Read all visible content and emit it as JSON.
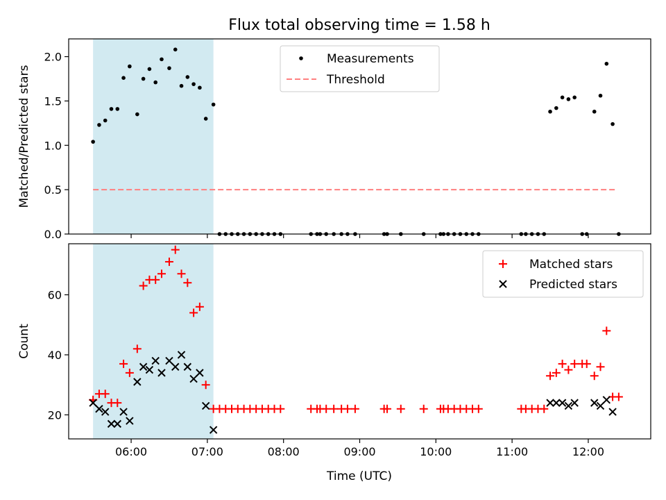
{
  "title": "Flux total observing time = 1.58 h",
  "colors": {
    "shade": "#add8e6",
    "threshold": "#ff7f7f",
    "matched": "#ff0000",
    "predicted": "#000000",
    "measure": "#000000"
  },
  "chart_data": [
    {
      "type": "scatter",
      "title": "Flux total observing time = 1.58 h",
      "xlabel": "",
      "ylabel": "Matched/Predicted stars",
      "x_axis": "time (decimal hours UTC)",
      "xlim": [
        5.18,
        12.82
      ],
      "ylim": [
        0.0,
        2.2
      ],
      "yticks": [
        0.0,
        0.5,
        1.0,
        1.5,
        2.0
      ],
      "yticklabels": [
        "0.0",
        "0.5",
        "1.0",
        "1.5",
        "2.0"
      ],
      "shaded_span": [
        5.5,
        7.08
      ],
      "threshold": {
        "name": "Threshold",
        "value": 0.5,
        "x": [
          5.5,
          12.38
        ]
      },
      "legend": {
        "position": "top-center",
        "entries": [
          "Measurements",
          "Threshold"
        ]
      },
      "series": [
        {
          "name": "Measurements",
          "x": [
            5.5,
            5.58,
            5.66,
            5.74,
            5.82,
            5.9,
            5.98,
            6.08,
            6.16,
            6.24,
            6.32,
            6.4,
            6.5,
            6.58,
            6.66,
            6.74,
            6.82,
            6.9,
            6.98,
            7.08,
            7.16,
            7.24,
            7.32,
            7.4,
            7.48,
            7.56,
            7.64,
            7.72,
            7.8,
            7.88,
            7.96,
            8.36,
            8.44,
            8.48,
            8.56,
            8.66,
            8.76,
            8.84,
            8.94,
            9.32,
            9.36,
            9.54,
            9.84,
            10.06,
            10.1,
            10.16,
            10.24,
            10.32,
            10.4,
            10.48,
            10.56,
            11.12,
            11.18,
            11.26,
            11.34,
            11.42,
            11.5,
            11.58,
            11.66,
            11.74,
            11.82,
            11.92,
            11.98,
            12.08,
            12.16,
            12.24,
            12.32,
            12.4
          ],
          "y": [
            1.04,
            1.23,
            1.28,
            1.41,
            1.41,
            1.76,
            1.89,
            1.35,
            1.75,
            1.86,
            1.71,
            1.97,
            1.87,
            2.08,
            1.67,
            1.77,
            1.69,
            1.65,
            1.3,
            1.46,
            0,
            0,
            0,
            0,
            0,
            0,
            0,
            0,
            0,
            0,
            0,
            0,
            0,
            0,
            0,
            0,
            0,
            0,
            0,
            0,
            0,
            0,
            0,
            0,
            0,
            0,
            0,
            0,
            0,
            0,
            0,
            0,
            0,
            0,
            0,
            0,
            1.38,
            1.42,
            1.54,
            1.52,
            1.54,
            0,
            0,
            1.38,
            1.56,
            1.92,
            1.24,
            0
          ]
        }
      ]
    },
    {
      "type": "scatter",
      "title": "",
      "xlabel": "Time (UTC)",
      "ylabel": "Count",
      "xlim": [
        5.18,
        12.82
      ],
      "ylim": [
        12,
        77
      ],
      "yticks": [
        20,
        40,
        60
      ],
      "yticklabels": [
        "20",
        "40",
        "60"
      ],
      "xticks": [
        6,
        7,
        8,
        9,
        10,
        11,
        12
      ],
      "xticklabels": [
        "06:00",
        "07:00",
        "08:00",
        "09:00",
        "10:00",
        "11:00",
        "12:00"
      ],
      "shaded_span": [
        5.5,
        7.08
      ],
      "legend": {
        "position": "top-right",
        "entries": [
          "Matched stars",
          "Predicted stars"
        ]
      },
      "series": [
        {
          "name": "Matched stars",
          "x": [
            5.5,
            5.58,
            5.66,
            5.74,
            5.82,
            5.9,
            5.98,
            6.08,
            6.16,
            6.24,
            6.32,
            6.4,
            6.5,
            6.58,
            6.66,
            6.74,
            6.82,
            6.9,
            6.98,
            7.08,
            7.16,
            7.24,
            7.32,
            7.4,
            7.48,
            7.56,
            7.64,
            7.72,
            7.8,
            7.88,
            7.96,
            8.36,
            8.44,
            8.48,
            8.56,
            8.66,
            8.76,
            8.84,
            8.94,
            9.32,
            9.36,
            9.54,
            9.84,
            10.06,
            10.1,
            10.16,
            10.24,
            10.32,
            10.4,
            10.48,
            10.56,
            11.12,
            11.18,
            11.26,
            11.34,
            11.42,
            11.5,
            11.58,
            11.66,
            11.74,
            11.82,
            11.92,
            11.98,
            12.08,
            12.16,
            12.24,
            12.32,
            12.4
          ],
          "y": [
            25,
            27,
            27,
            24,
            24,
            37,
            34,
            42,
            63,
            65,
            65,
            67,
            71,
            75,
            67,
            64,
            54,
            56,
            30,
            22,
            22,
            22,
            22,
            22,
            22,
            22,
            22,
            22,
            22,
            22,
            22,
            22,
            22,
            22,
            22,
            22,
            22,
            22,
            22,
            22,
            22,
            22,
            22,
            22,
            22,
            22,
            22,
            22,
            22,
            22,
            22,
            22,
            22,
            22,
            22,
            22,
            33,
            34,
            37,
            35,
            37,
            37,
            37,
            33,
            36,
            48,
            26,
            26
          ]
        },
        {
          "name": "Predicted stars",
          "x": [
            5.5,
            5.58,
            5.66,
            5.74,
            5.82,
            5.9,
            5.98,
            6.08,
            6.16,
            6.24,
            6.32,
            6.4,
            6.5,
            6.58,
            6.66,
            6.74,
            6.82,
            6.9,
            6.98,
            7.08,
            11.5,
            11.58,
            11.66,
            11.74,
            11.82,
            12.08,
            12.16,
            12.24,
            12.32
          ],
          "y": [
            24,
            22,
            21,
            17,
            17,
            21,
            18,
            31,
            36,
            35,
            38,
            34,
            38,
            36,
            40,
            36,
            32,
            34,
            23,
            15,
            24,
            24,
            24,
            23,
            24,
            24,
            23,
            25,
            21
          ]
        }
      ]
    }
  ]
}
